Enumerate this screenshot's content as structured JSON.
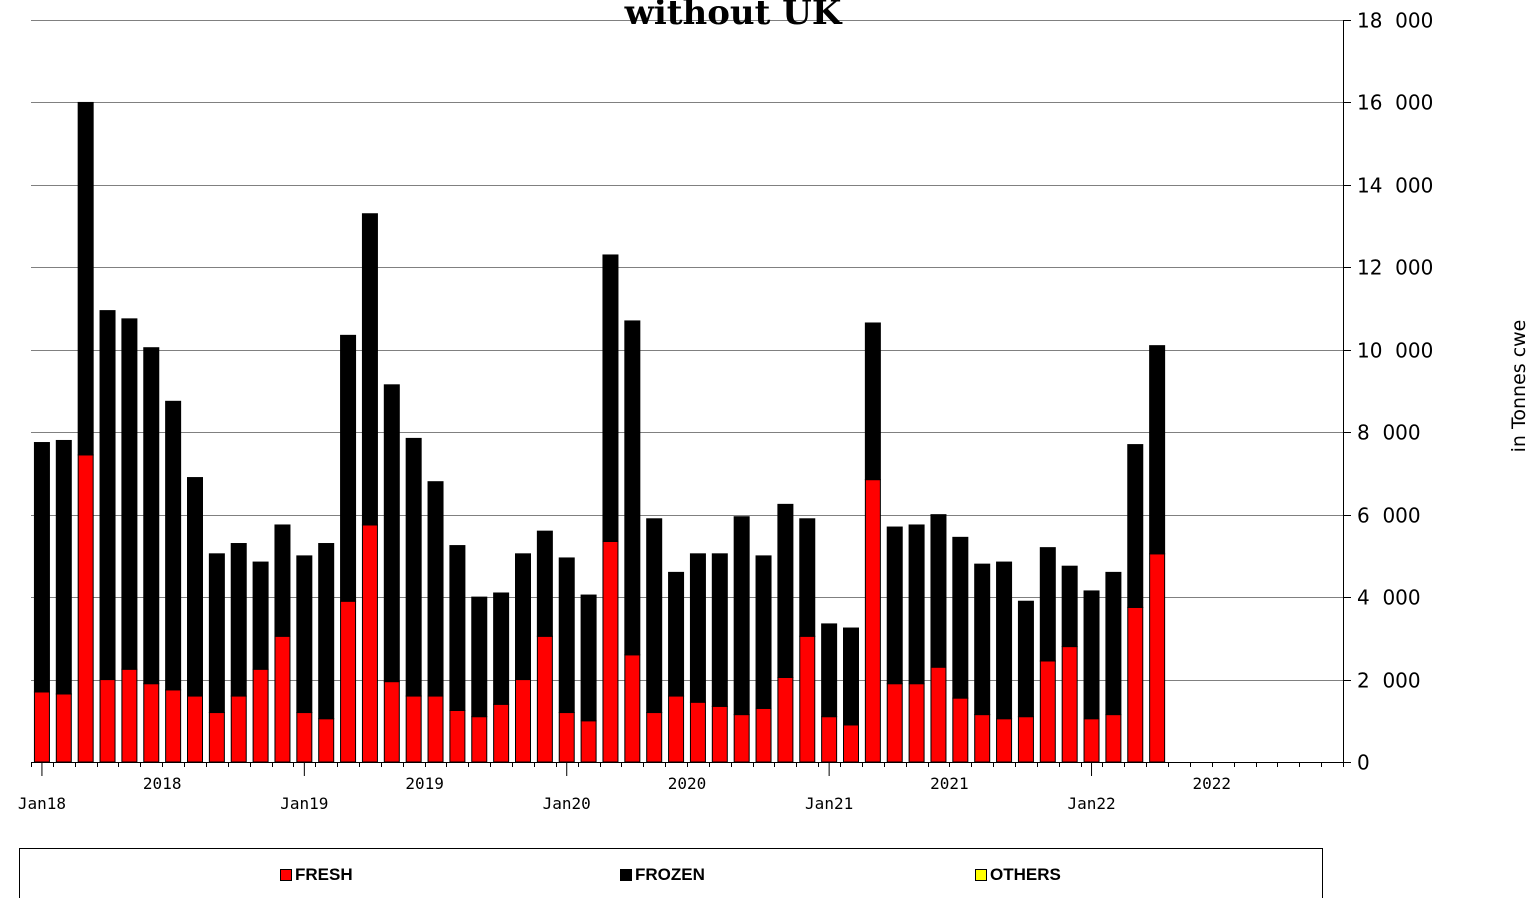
{
  "chart_data": {
    "type": "bar",
    "stacked": true,
    "title": "without UK",
    "ylabel": "in  Tonnes  cwe",
    "ylim": [
      0,
      18000
    ],
    "yticks": [
      0,
      2000,
      4000,
      6000,
      8000,
      10000,
      12000,
      14000,
      16000,
      18000
    ],
    "ytick_labels": [
      "0",
      "2  000",
      "4  000",
      "6  000",
      "8  000",
      "10  000",
      "12  000",
      "14  000",
      "16  000",
      "18  000"
    ],
    "y_axis_side": "right",
    "grid": true,
    "x_months_total": 60,
    "x_month_labels": [
      "Jan18",
      "Jan19",
      "Jan20",
      "Jan21",
      "Jan22"
    ],
    "x_year_labels": [
      "2018",
      "2019",
      "2020",
      "2021",
      "2022"
    ],
    "legend_placement": "bottom",
    "categories": [
      "2018-01",
      "2018-02",
      "2018-03",
      "2018-04",
      "2018-05",
      "2018-06",
      "2018-07",
      "2018-08",
      "2018-09",
      "2018-10",
      "2018-11",
      "2018-12",
      "2019-01",
      "2019-02",
      "2019-03",
      "2019-04",
      "2019-05",
      "2019-06",
      "2019-07",
      "2019-08",
      "2019-09",
      "2019-10",
      "2019-11",
      "2019-12",
      "2020-01",
      "2020-02",
      "2020-03",
      "2020-04",
      "2020-05",
      "2020-06",
      "2020-07",
      "2020-08",
      "2020-09",
      "2020-10",
      "2020-11",
      "2020-12",
      "2021-01",
      "2021-02",
      "2021-03",
      "2021-04",
      "2021-05",
      "2021-06",
      "2021-07",
      "2021-08",
      "2021-09",
      "2021-10",
      "2021-11",
      "2021-12",
      "2022-01",
      "2022-02",
      "2022-03",
      "2022-04",
      "2022-05"
    ],
    "series": [
      {
        "name": "FRESH",
        "color": "#ff0000",
        "values": [
          1700,
          1650,
          7450,
          2000,
          2250,
          1900,
          1750,
          1600,
          1200,
          1600,
          2250,
          3050,
          1200,
          1050,
          3900,
          5750,
          1950,
          1600,
          1600,
          1250,
          1100,
          1400,
          2000,
          3050,
          1200,
          1000,
          5350,
          2600,
          1200,
          1600,
          1450,
          1350,
          1150,
          1300,
          2050,
          3050,
          1100,
          900,
          6850,
          1900,
          1900,
          2300,
          1550,
          1150,
          1050,
          1100,
          2450,
          2800,
          1050,
          1150,
          3750,
          5050,
          0
        ]
      },
      {
        "name": "FROZEN",
        "color": "#000000",
        "values": [
          6050,
          6150,
          8550,
          8950,
          8500,
          8150,
          7000,
          5300,
          3850,
          3700,
          2600,
          2700,
          3800,
          4250,
          6450,
          7550,
          7200,
          6250,
          5200,
          4000,
          2900,
          2700,
          3050,
          2550,
          3750,
          3050,
          6950,
          8100,
          4700,
          3000,
          3600,
          3700,
          4800,
          3700,
          4200,
          2850,
          2250,
          2350,
          3800,
          3800,
          3850,
          3700,
          3900,
          3650,
          3800,
          2800,
          2750,
          1950,
          3100,
          3450,
          3950,
          5050,
          0
        ]
      },
      {
        "name": "OTHERS",
        "color": "#ffff00",
        "values": [
          0,
          0,
          0,
          0,
          0,
          0,
          0,
          0,
          0,
          0,
          0,
          0,
          0,
          0,
          0,
          0,
          0,
          0,
          0,
          0,
          0,
          0,
          0,
          0,
          0,
          0,
          0,
          0,
          0,
          0,
          0,
          0,
          0,
          0,
          0,
          0,
          0,
          0,
          0,
          0,
          0,
          0,
          0,
          0,
          0,
          0,
          0,
          0,
          0,
          0,
          0,
          0,
          0
        ]
      }
    ]
  },
  "legend": {
    "items": [
      {
        "label": "FRESH",
        "color": "#ff0000"
      },
      {
        "label": "FROZEN",
        "color": "#000000"
      },
      {
        "label": "OTHERS",
        "color": "#ffff00"
      }
    ]
  }
}
